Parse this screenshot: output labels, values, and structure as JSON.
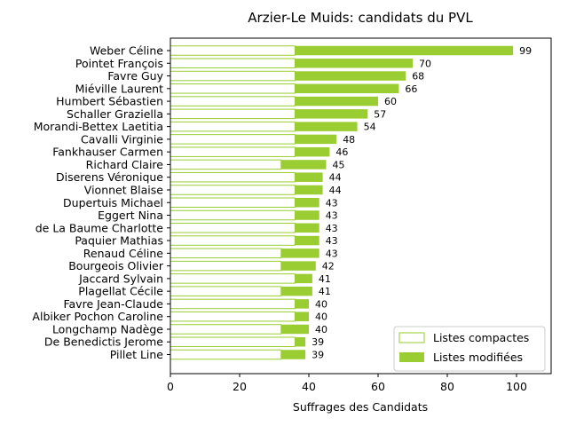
{
  "chart_data": {
    "type": "bar",
    "orientation": "horizontal",
    "stacked": true,
    "title": "Arzier-Le Muids: candidats du PVL",
    "xlabel": "Suffrages des Candidats",
    "ylabel": "",
    "xlim": [
      0,
      110
    ],
    "xticks": [
      0,
      20,
      40,
      60,
      80,
      100
    ],
    "grid": false,
    "legend_position": "lower-right",
    "colors": {
      "compact": "#ffffff",
      "compact_edge": "#9acd32",
      "modified": "#9acd32"
    },
    "categories": [
      "Weber Céline",
      "Pointet François",
      "Favre Guy",
      "Miéville Laurent",
      "Humbert Sébastien",
      "Schaller Graziella",
      "Morandi-Bettex Laetitia",
      "Cavalli Virginie",
      "Fankhauser Carmen",
      "Richard Claire",
      "Diserens Véronique",
      "Vionnet Blaise",
      "Dupertuis Michael",
      "Eggert Nina",
      "de La Baume Charlotte",
      "Paquier Mathias",
      "Renaud Céline",
      "Bourgeois Olivier",
      "Jaccard Sylvain",
      "Plagellat Cécile",
      "Favre Jean-Claude",
      "Albiker Pochon Caroline",
      "Longchamp Nadège",
      "De Benedictis Jerome",
      "Pillet Line"
    ],
    "series": [
      {
        "name": "Listes compactes",
        "values": [
          36,
          36,
          36,
          36,
          36,
          36,
          36,
          36,
          36,
          32,
          36,
          36,
          36,
          36,
          36,
          36,
          32,
          32,
          36,
          32,
          36,
          36,
          32,
          36,
          32
        ]
      },
      {
        "name": "Listes modifiées",
        "values": [
          63,
          34,
          32,
          30,
          24,
          21,
          18,
          12,
          10,
          13,
          8,
          8,
          7,
          7,
          7,
          7,
          11,
          10,
          5,
          9,
          4,
          4,
          8,
          3,
          7
        ]
      }
    ],
    "totals": [
      "99",
      "70",
      "68",
      "66",
      "60",
      "57",
      "54",
      "48",
      "46",
      "45",
      "44",
      "44",
      "43",
      "43",
      "43",
      "43",
      "43",
      "42",
      "41",
      "41",
      "40",
      "40",
      "40",
      "39",
      "39"
    ]
  }
}
